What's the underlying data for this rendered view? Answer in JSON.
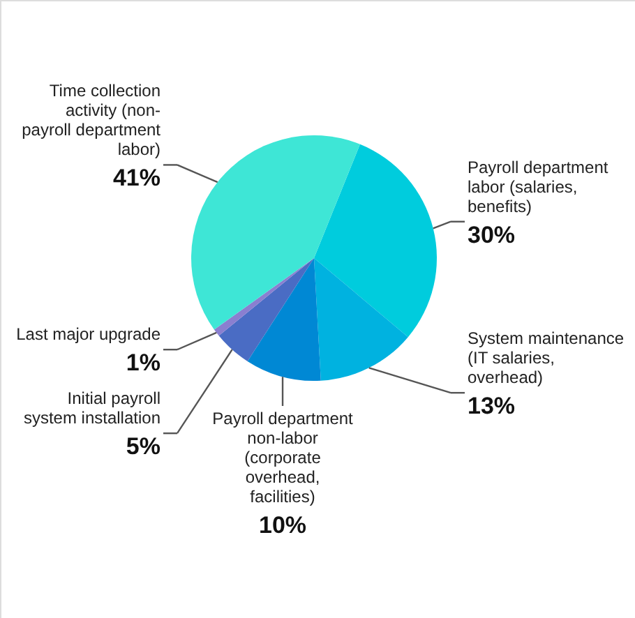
{
  "chart_data": {
    "type": "pie",
    "categories": [
      "Payroll department labor (salaries, benefits)",
      "System maintenance (IT salaries, overhead)",
      "Payroll department non-labor (corporate overhead, facilities)",
      "Initial payroll system installation",
      "Last major upgrade",
      "Time collection activity (non-payroll department labor)"
    ],
    "values": [
      30,
      13,
      10,
      5,
      1,
      41
    ],
    "value_labels": [
      "30%",
      "13%",
      "10%",
      "5%",
      "1%",
      "41%"
    ],
    "colors": [
      "#00ccdd",
      "#00b2e0",
      "#0088d4",
      "#4a6cc4",
      "#8a7fd0",
      "#3ee6d6"
    ]
  }
}
